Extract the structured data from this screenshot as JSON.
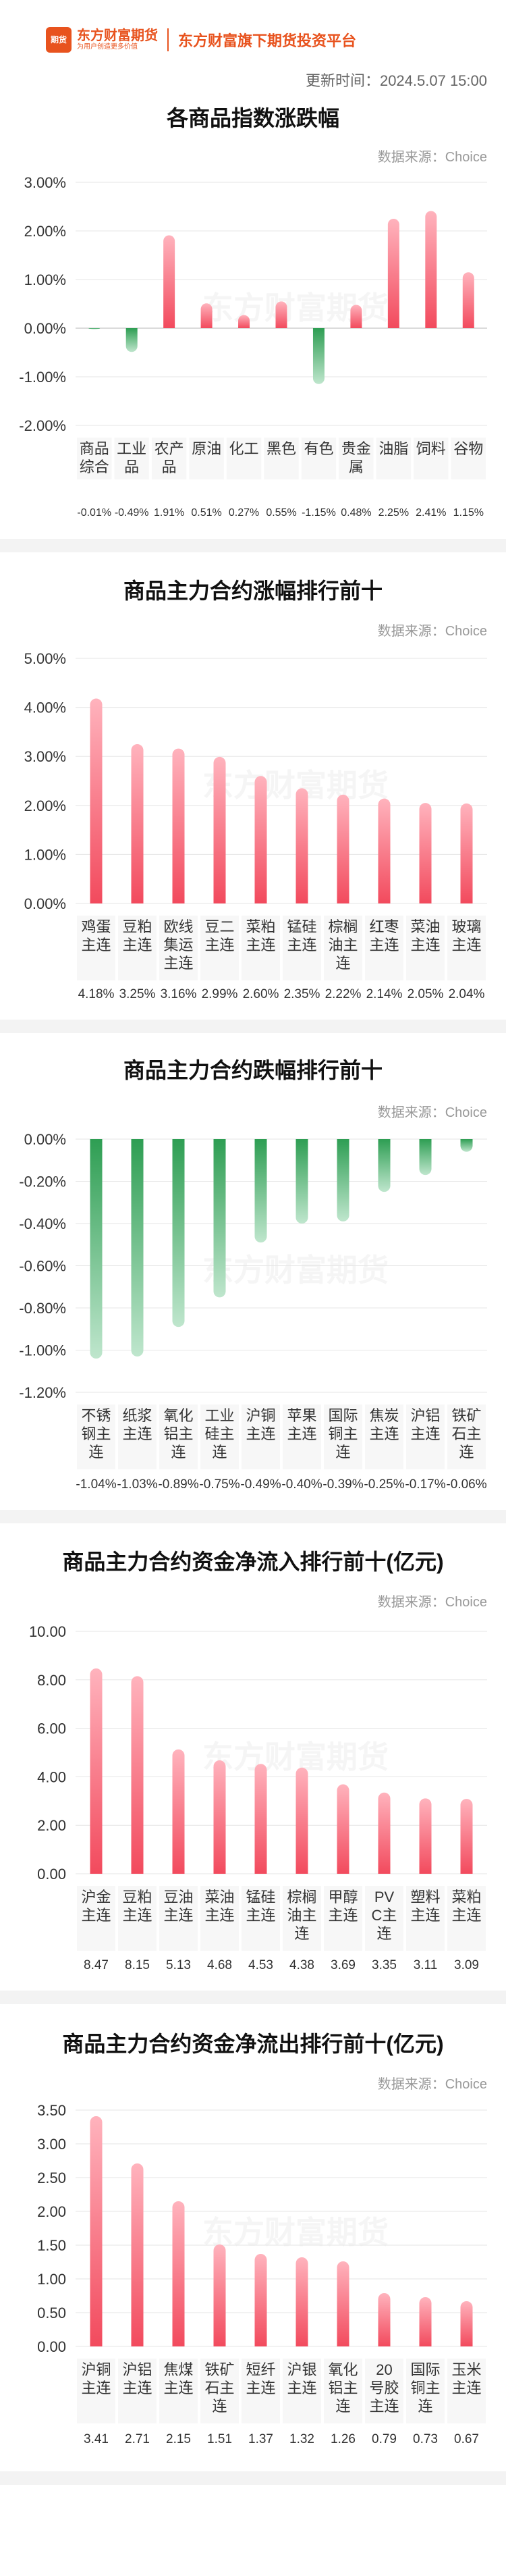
{
  "header": {
    "logo_text": "东方财富期货",
    "logo_icon": "期货",
    "slogan": "为用户创造更多价值",
    "platform": "东方财富旗下期货投资平台",
    "update_time": "更新时间：2024.5.07 15:00"
  },
  "watermark": "东方财富期货",
  "source_label": "数据来源：Choice",
  "colors": {
    "up": "#f24a5d",
    "up_light": "#ffb3bd",
    "down": "#2e9e53",
    "down_light": "#bfe6cd",
    "brand": "#e8531e"
  },
  "chart_data": [
    {
      "type": "bar",
      "title": "各商品指数涨跌幅",
      "categories": [
        "商品综合",
        "工业品",
        "农产品",
        "原油",
        "化工",
        "黑色",
        "有色",
        "贵金属",
        "油脂",
        "饲料",
        "谷物"
      ],
      "values": [
        -0.01,
        -0.49,
        1.91,
        0.51,
        0.27,
        0.55,
        -1.15,
        0.48,
        2.25,
        2.41,
        1.15
      ],
      "value_labels": [
        "-0.01%",
        "-0.49%",
        "1.91%",
        "0.51%",
        "0.27%",
        "0.55%",
        "-1.15%",
        "0.48%",
        "2.25%",
        "2.41%",
        "1.15%"
      ],
      "yticks": [
        "3.00%",
        "2.00%",
        "1.00%",
        "0.00%",
        "-1.00%",
        "-2.00%"
      ],
      "ylim": [
        -2,
        3
      ]
    },
    {
      "type": "bar",
      "title": "商品主力合约涨幅排行前十",
      "categories": [
        "鸡蛋主连",
        "豆粕主连",
        "欧线集运主连",
        "豆二主连",
        "菜粕主连",
        "锰硅主连",
        "棕榈油主连",
        "红枣主连",
        "菜油主连",
        "玻璃主连"
      ],
      "values": [
        4.18,
        3.25,
        3.16,
        2.99,
        2.6,
        2.35,
        2.22,
        2.14,
        2.05,
        2.04
      ],
      "value_labels": [
        "4.18%",
        "3.25%",
        "3.16%",
        "2.99%",
        "2.60%",
        "2.35%",
        "2.22%",
        "2.14%",
        "2.05%",
        "2.04%"
      ],
      "yticks": [
        "5.00%",
        "4.00%",
        "3.00%",
        "2.00%",
        "1.00%",
        "0.00%"
      ],
      "ylim": [
        0,
        5
      ]
    },
    {
      "type": "bar",
      "title": "商品主力合约跌幅排行前十",
      "categories": [
        "不锈钢主连",
        "纸浆主连",
        "氧化铝主连",
        "工业硅主连",
        "沪铜主连",
        "苹果主连",
        "国际铜主连",
        "焦炭主连",
        "沪铝主连",
        "铁矿石主连"
      ],
      "values": [
        -1.04,
        -1.03,
        -0.89,
        -0.75,
        -0.49,
        -0.4,
        -0.39,
        -0.25,
        -0.17,
        -0.06
      ],
      "value_labels": [
        "-1.04%",
        "-1.03%",
        "-0.89%",
        "-0.75%",
        "-0.49%",
        "-0.40%",
        "-0.39%",
        "-0.25%",
        "-0.17%",
        "-0.06%"
      ],
      "yticks": [
        "0.00%",
        "-0.20%",
        "-0.40%",
        "-0.60%",
        "-0.80%",
        "-1.00%",
        "-1.20%"
      ],
      "ylim": [
        -1.2,
        0
      ]
    },
    {
      "type": "bar",
      "title": "商品主力合约资金净流入排行前十(亿元)",
      "categories": [
        "沪金主连",
        "豆粕主连",
        "豆油主连",
        "菜油主连",
        "锰硅主连",
        "棕榈油主连",
        "甲醇主连",
        "PVC主连",
        "塑料主连",
        "菜粕主连"
      ],
      "values": [
        8.47,
        8.15,
        5.13,
        4.68,
        4.53,
        4.38,
        3.69,
        3.35,
        3.11,
        3.09
      ],
      "value_labels": [
        "8.47",
        "8.15",
        "5.13",
        "4.68",
        "4.53",
        "4.38",
        "3.69",
        "3.35",
        "3.11",
        "3.09"
      ],
      "yticks": [
        "10.00",
        "8.00",
        "6.00",
        "4.00",
        "2.00",
        "0.00"
      ],
      "ylim": [
        0,
        10
      ]
    },
    {
      "type": "bar",
      "title": "商品主力合约资金净流出排行前十(亿元)",
      "categories": [
        "沪铜主连",
        "沪铝主连",
        "焦煤主连",
        "铁矿石主连",
        "短纤主连",
        "沪银主连",
        "氧化铝主连",
        "20号胶主连",
        "国际铜主连",
        "玉米主连"
      ],
      "values": [
        3.41,
        2.71,
        2.15,
        1.51,
        1.37,
        1.32,
        1.26,
        0.79,
        0.73,
        0.67
      ],
      "value_labels": [
        "3.41",
        "2.71",
        "2.15",
        "1.51",
        "1.37",
        "1.32",
        "1.26",
        "0.79",
        "0.73",
        "0.67"
      ],
      "yticks": [
        "3.50",
        "3.00",
        "2.50",
        "2.00",
        "1.50",
        "1.00",
        "0.50",
        "0.00"
      ],
      "ylim": [
        0,
        3.5
      ]
    }
  ]
}
